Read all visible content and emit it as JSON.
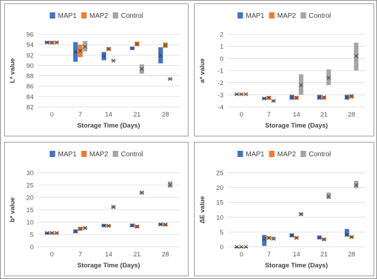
{
  "colors": {
    "map1": "#4472C4",
    "map2": "#ED7D31",
    "control": "#A5A5A5",
    "grid": "#D9D9D9"
  },
  "chart_data": [
    {
      "type": "box",
      "xlabel": "Storage Time (Days)",
      "ylabel": "L* value",
      "ylim": [
        82,
        96
      ],
      "yticks": [
        82,
        84,
        86,
        88,
        90,
        92,
        94,
        96
      ],
      "categories": [
        "0",
        "7",
        "14",
        "21",
        "28"
      ],
      "grid": true,
      "legend": "top",
      "series": [
        {
          "name": "MAP1",
          "ranges": [
            [
              94.2,
              94.7
            ],
            [
              90.7,
              94.5
            ],
            [
              91.0,
              92.6
            ],
            [
              93.0,
              93.6
            ],
            [
              90.4,
              93.5
            ]
          ],
          "means": [
            94.4,
            92.6,
            91.8,
            93.3,
            91.9
          ]
        },
        {
          "name": "MAP2",
          "ranges": [
            [
              94.1,
              94.7
            ],
            [
              91.6,
              94.0
            ],
            [
              92.8,
              93.5
            ],
            [
              93.7,
              94.6
            ],
            [
              93.4,
              94.4
            ]
          ],
          "means": [
            94.4,
            92.8,
            93.2,
            94.1,
            93.9
          ]
        },
        {
          "name": "Control",
          "ranges": [
            [
              94.2,
              94.7
            ],
            [
              92.7,
              94.7
            ],
            [
              90.8,
              91.1
            ],
            [
              88.4,
              90.2
            ],
            [
              87.2,
              87.6
            ]
          ],
          "means": [
            94.4,
            93.6,
            90.9,
            89.3,
            87.4
          ]
        }
      ]
    },
    {
      "type": "box",
      "xlabel": "Storage Time (Days)",
      "ylabel": "a* value",
      "ylim": [
        -4,
        2
      ],
      "yticks": [
        -4,
        -3,
        -2,
        -1,
        0,
        1,
        2
      ],
      "categories": [
        "0",
        "7",
        "14",
        "21",
        "28"
      ],
      "grid": true,
      "legend": "top",
      "series": [
        {
          "name": "MAP1",
          "ranges": [
            [
              -3.0,
              -2.9
            ],
            [
              -3.4,
              -3.2
            ],
            [
              -3.4,
              -3.0
            ],
            [
              -3.4,
              -3.0
            ],
            [
              -3.4,
              -3.0
            ]
          ],
          "means": [
            -2.95,
            -3.3,
            -3.2,
            -3.2,
            -3.2
          ]
        },
        {
          "name": "MAP2",
          "ranges": [
            [
              -3.0,
              -2.9
            ],
            [
              -3.4,
              -3.1
            ],
            [
              -3.4,
              -3.1
            ],
            [
              -3.4,
              -3.1
            ],
            [
              -3.3,
              -3.0
            ]
          ],
          "means": [
            -2.95,
            -3.25,
            -3.25,
            -3.2,
            -3.1
          ]
        },
        {
          "name": "Control",
          "ranges": [
            [
              -3.0,
              -2.9
            ],
            [
              -3.6,
              -3.4
            ],
            [
              -3.0,
              -1.3
            ],
            [
              -2.2,
              -0.9
            ],
            [
              -1.0,
              1.3
            ]
          ],
          "means": [
            -2.95,
            -3.5,
            -2.2,
            -1.6,
            0.2
          ]
        }
      ]
    },
    {
      "type": "box",
      "xlabel": "Storage Time (Days)",
      "ylabel": "b* value",
      "ylim": [
        0,
        30
      ],
      "yticks": [
        0,
        5,
        10,
        15,
        20,
        25,
        30
      ],
      "categories": [
        "0",
        "7",
        "14",
        "21",
        "28"
      ],
      "grid": true,
      "legend": "top",
      "series": [
        {
          "name": "MAP1",
          "ranges": [
            [
              5.0,
              6.0
            ],
            [
              5.5,
              7.0
            ],
            [
              8.0,
              9.2
            ],
            [
              8.0,
              9.3
            ],
            [
              8.5,
              9.6
            ]
          ],
          "means": [
            5.6,
            6.3,
            8.6,
            8.7,
            9.1
          ]
        },
        {
          "name": "MAP2",
          "ranges": [
            [
              5.0,
              6.0
            ],
            [
              6.5,
              8.0
            ],
            [
              8.0,
              9.0
            ],
            [
              7.5,
              8.8
            ],
            [
              8.3,
              9.5
            ]
          ],
          "means": [
            5.6,
            7.3,
            8.5,
            8.2,
            9.0
          ]
        },
        {
          "name": "Control",
          "ranges": [
            [
              5.0,
              6.0
            ],
            [
              7.0,
              8.2
            ],
            [
              15.5,
              16.8
            ],
            [
              21.3,
              22.6
            ],
            [
              24.0,
              26.5
            ]
          ],
          "means": [
            5.6,
            7.6,
            16.1,
            21.9,
            25.1
          ]
        }
      ]
    },
    {
      "type": "box",
      "xlabel": "Storage Time (Days)",
      "ylabel": "ΔE value",
      "ylim": [
        0,
        25
      ],
      "yticks": [
        0,
        5,
        10,
        15,
        20,
        25
      ],
      "categories": [
        "0",
        "7",
        "14",
        "21",
        "28"
      ],
      "grid": true,
      "legend": "top",
      "series": [
        {
          "name": "MAP1",
          "ranges": [
            [
              0,
              0
            ],
            [
              0.3,
              4.0
            ],
            [
              3.2,
              4.5
            ],
            [
              2.5,
              3.8
            ],
            [
              3.5,
              6.0
            ]
          ],
          "means": [
            0,
            2.6,
            3.9,
            3.1,
            4.0
          ]
        },
        {
          "name": "MAP2",
          "ranges": [
            [
              0,
              0
            ],
            [
              2.5,
              3.5
            ],
            [
              2.6,
              3.5
            ],
            [
              2.0,
              3.0
            ],
            [
              2.8,
              3.8
            ]
          ],
          "means": [
            0,
            3.0,
            3.0,
            2.5,
            3.3
          ]
        },
        {
          "name": "Control",
          "ranges": [
            [
              0,
              0
            ],
            [
              2.3,
              3.4
            ],
            [
              10.5,
              11.6
            ],
            [
              16.2,
              18.3
            ],
            [
              19.8,
              22.3
            ]
          ],
          "means": [
            0,
            2.7,
            11.0,
            17.0,
            20.8
          ]
        }
      ]
    }
  ]
}
